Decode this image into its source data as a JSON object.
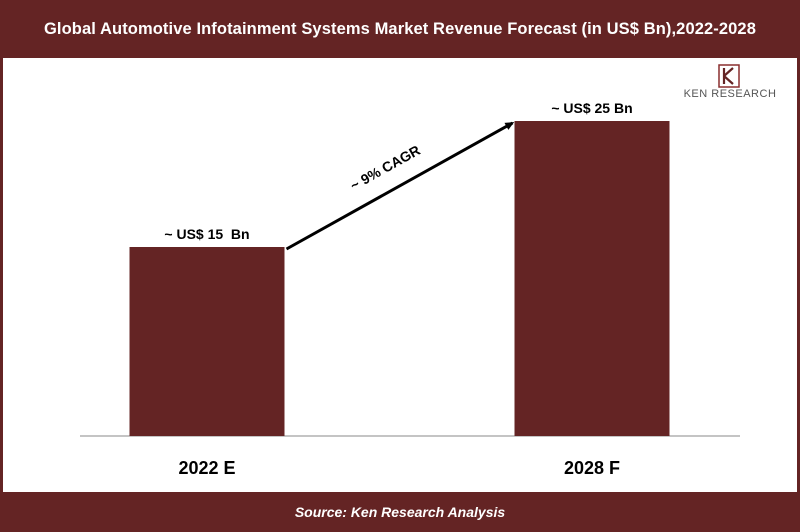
{
  "header": {
    "title": "Global Automotive Infotainment Systems Market Revenue Forecast (in US$ Bn),2022-2028"
  },
  "footer": {
    "source": "Source: Ken Research Analysis"
  },
  "logo": {
    "text": "KEN RESEARCH",
    "icon": "ken-research-logo-icon"
  },
  "colors": {
    "brand": "#642424",
    "bar": "#642424"
  },
  "chart_data": {
    "type": "bar",
    "title": "Global Automotive Infotainment Systems Market Revenue Forecast (in US$ Bn),2022-2028",
    "categories": [
      "2022 E",
      "2028 F"
    ],
    "values": [
      15,
      25
    ],
    "data_labels": [
      "~ US$ 15  Bn",
      "~ US$ 25 Bn"
    ],
    "annotations": [
      "~ 9% CAGR"
    ],
    "xlabel": "",
    "ylabel": "",
    "ylim": [
      0,
      30
    ],
    "grid": false,
    "y_axis_visible": false
  }
}
